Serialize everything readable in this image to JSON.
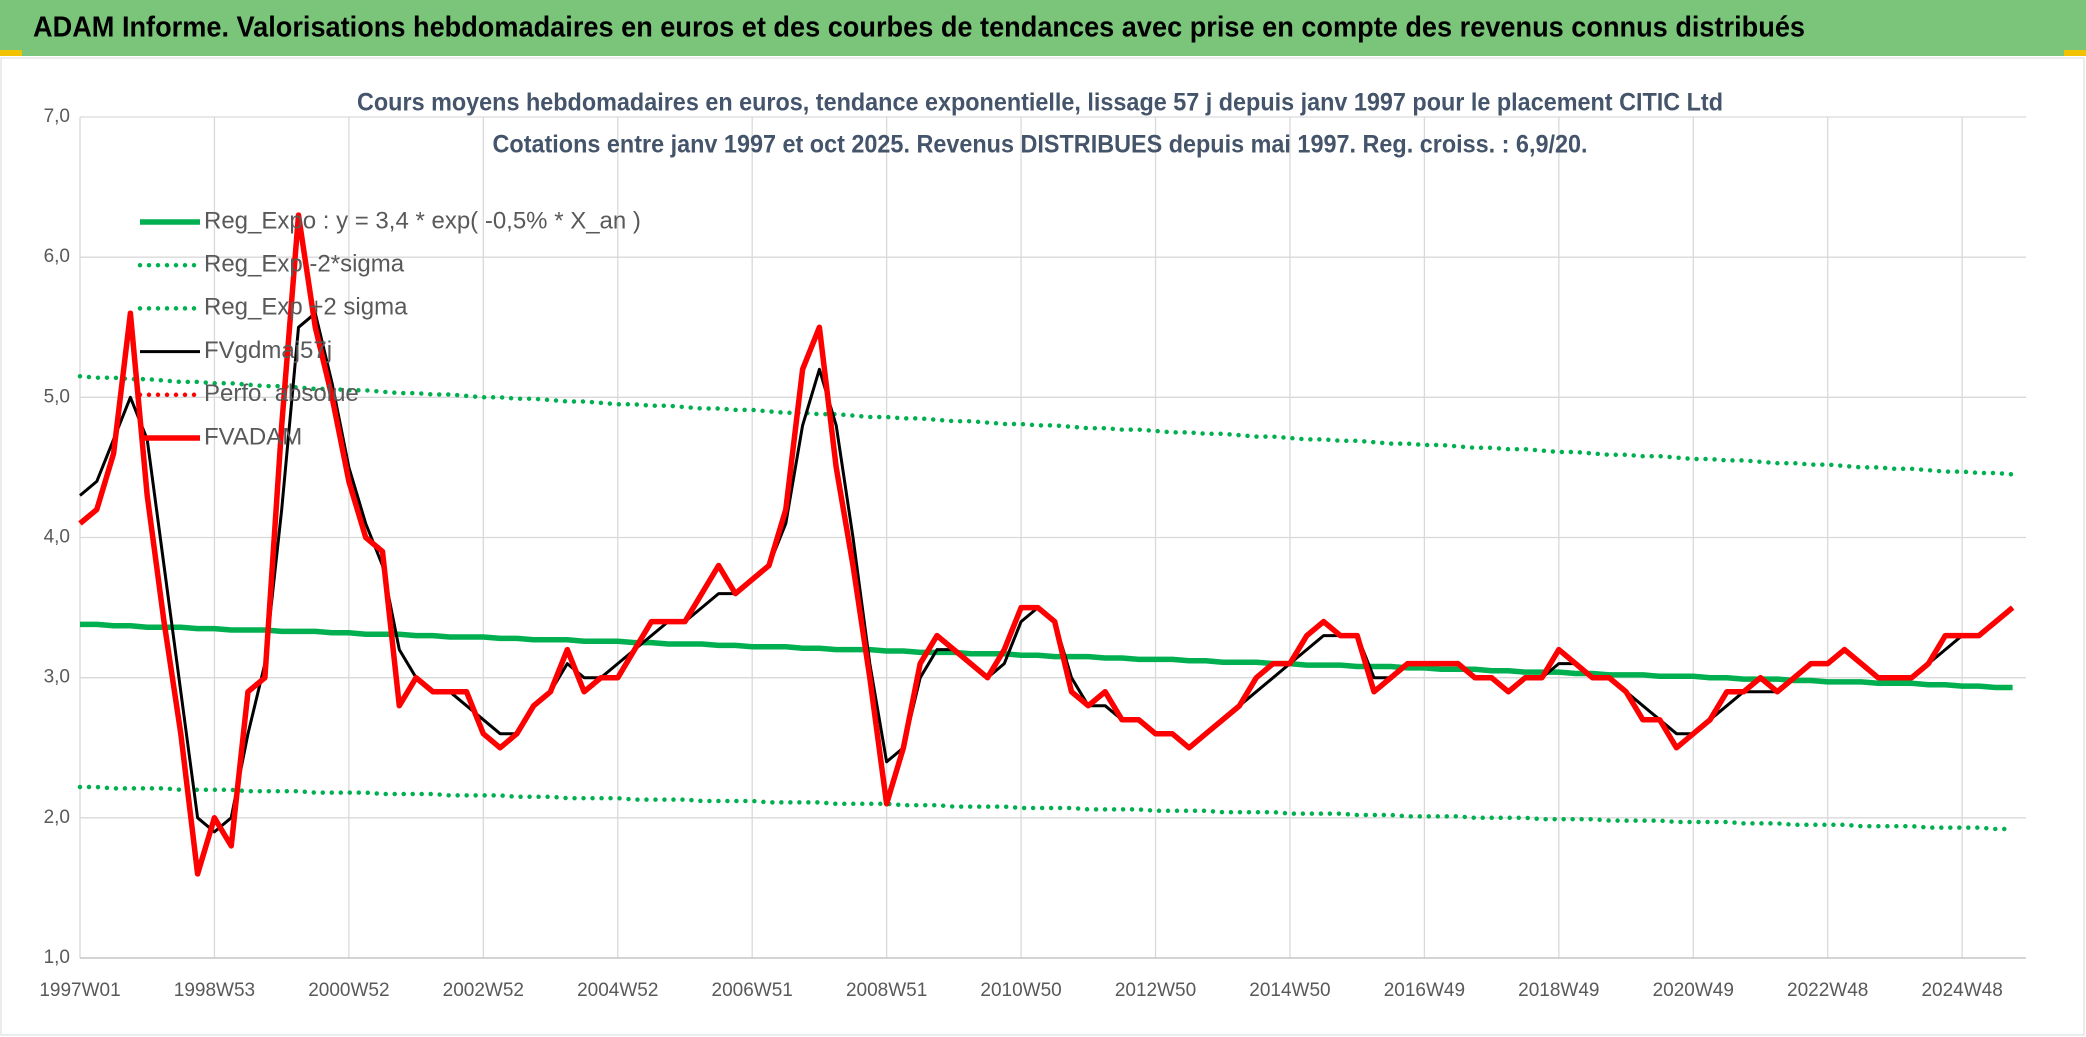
{
  "header": {
    "title": "ADAM Informe. Valorisations hebdomadaires en euros et des courbes de tendances avec prise en compte des revenus connus distribués"
  },
  "chart_data": {
    "type": "line",
    "title": "Cours moyens hebdomadaires en euros, tendance exponentielle, lissage 57 j depuis janv 1997 pour le placement CITIC Ltd",
    "subtitle": "Cotations entre janv 1997 et oct 2025. Revenus DISTRIBUES depuis mai 1997. Reg. croiss. : 6,9/20.",
    "categories": [
      "1997W01",
      null,
      null,
      null,
      null,
      null,
      null,
      null,
      "1998W53",
      null,
      null,
      null,
      null,
      null,
      null,
      null,
      "2000W52",
      null,
      null,
      null,
      null,
      null,
      null,
      null,
      "2002W52",
      null,
      null,
      null,
      null,
      null,
      null,
      null,
      "2004W52",
      null,
      null,
      null,
      null,
      null,
      null,
      null,
      "2006W51",
      null,
      null,
      null,
      null,
      null,
      null,
      null,
      "2008W51",
      null,
      null,
      null,
      null,
      null,
      null,
      null,
      "2010W50",
      null,
      null,
      null,
      null,
      null,
      null,
      null,
      "2012W50",
      null,
      null,
      null,
      null,
      null,
      null,
      null,
      "2014W50",
      null,
      null,
      null,
      null,
      null,
      null,
      null,
      "2016W49",
      null,
      null,
      null,
      null,
      null,
      null,
      null,
      "2018W49",
      null,
      null,
      null,
      null,
      null,
      null,
      null,
      "2020W49",
      null,
      null,
      null,
      null,
      null,
      null,
      null,
      "2022W48",
      null,
      null,
      null,
      null,
      null,
      null,
      null,
      "2024W48",
      null,
      null,
      null
    ],
    "ylim": [
      1,
      7
    ],
    "yticks": [
      {
        "value": 1,
        "label": "1,0"
      },
      {
        "value": 2,
        "label": "2,0"
      },
      {
        "value": 3,
        "label": "3,0"
      },
      {
        "value": 4,
        "label": "4,0"
      },
      {
        "value": 5,
        "label": "5,0"
      },
      {
        "value": 6,
        "label": "6,0"
      },
      {
        "value": 7,
        "label": "7,0"
      }
    ],
    "grid": true,
    "legend": "upper left",
    "series": [
      {
        "name": "Reg_Expo : y = 3,4 * exp( -0,5% *  X_an )",
        "color": "#00b050",
        "style": "solid",
        "values": [
          3.38,
          3.38,
          3.37,
          3.37,
          3.36,
          3.36,
          3.36,
          3.35,
          3.35,
          3.34,
          3.34,
          3.34,
          3.33,
          3.33,
          3.33,
          3.32,
          3.32,
          3.31,
          3.31,
          3.31,
          3.3,
          3.3,
          3.29,
          3.29,
          3.29,
          3.28,
          3.28,
          3.27,
          3.27,
          3.27,
          3.26,
          3.26,
          3.26,
          3.25,
          3.25,
          3.24,
          3.24,
          3.24,
          3.23,
          3.23,
          3.22,
          3.22,
          3.22,
          3.21,
          3.21,
          3.2,
          3.2,
          3.2,
          3.19,
          3.19,
          3.18,
          3.18,
          3.18,
          3.17,
          3.17,
          3.17,
          3.16,
          3.16,
          3.15,
          3.15,
          3.15,
          3.14,
          3.14,
          3.13,
          3.13,
          3.13,
          3.12,
          3.12,
          3.11,
          3.11,
          3.11,
          3.1,
          3.1,
          3.09,
          3.09,
          3.09,
          3.08,
          3.08,
          3.08,
          3.07,
          3.07,
          3.06,
          3.06,
          3.06,
          3.05,
          3.05,
          3.04,
          3.04,
          3.04,
          3.03,
          3.03,
          3.02,
          3.02,
          3.02,
          3.01,
          3.01,
          3.01,
          3.0,
          3.0,
          2.99,
          2.99,
          2.99,
          2.98,
          2.98,
          2.97,
          2.97,
          2.97,
          2.96,
          2.96,
          2.96,
          2.95,
          2.95,
          2.94,
          2.94,
          2.93,
          2.93
        ]
      },
      {
        "name": "Reg_Exp -2*sigma",
        "color": "#00b050",
        "style": "dotted",
        "values": [
          2.22,
          2.22,
          2.21,
          2.21,
          2.21,
          2.21,
          2.2,
          2.2,
          2.2,
          2.2,
          2.19,
          2.19,
          2.19,
          2.19,
          2.18,
          2.18,
          2.18,
          2.18,
          2.17,
          2.17,
          2.17,
          2.17,
          2.16,
          2.16,
          2.16,
          2.16,
          2.15,
          2.15,
          2.15,
          2.14,
          2.14,
          2.14,
          2.14,
          2.13,
          2.13,
          2.13,
          2.13,
          2.12,
          2.12,
          2.12,
          2.12,
          2.11,
          2.11,
          2.11,
          2.11,
          2.1,
          2.1,
          2.1,
          2.1,
          2.09,
          2.09,
          2.09,
          2.08,
          2.08,
          2.08,
          2.08,
          2.07,
          2.07,
          2.07,
          2.07,
          2.06,
          2.06,
          2.06,
          2.06,
          2.05,
          2.05,
          2.05,
          2.05,
          2.04,
          2.04,
          2.04,
          2.04,
          2.03,
          2.03,
          2.03,
          2.03,
          2.02,
          2.02,
          2.02,
          2.01,
          2.01,
          2.01,
          2.01,
          2.0,
          2.0,
          2.0,
          2.0,
          1.99,
          1.99,
          1.99,
          1.99,
          1.98,
          1.98,
          1.98,
          1.98,
          1.97,
          1.97,
          1.97,
          1.97,
          1.96,
          1.96,
          1.96,
          1.95,
          1.95,
          1.95,
          1.95,
          1.94,
          1.94,
          1.94,
          1.94,
          1.93,
          1.93,
          1.93,
          1.93,
          1.92,
          1.92
        ]
      },
      {
        "name": "Reg_Exp +2 sigma",
        "color": "#00b050",
        "style": "dotted",
        "values": [
          5.15,
          5.14,
          5.14,
          5.13,
          5.13,
          5.12,
          5.11,
          5.11,
          5.1,
          5.1,
          5.09,
          5.08,
          5.08,
          5.07,
          5.06,
          5.06,
          5.05,
          5.05,
          5.04,
          5.03,
          5.03,
          5.02,
          5.02,
          5.01,
          5.0,
          5.0,
          4.99,
          4.99,
          4.98,
          4.97,
          4.97,
          4.96,
          4.95,
          4.95,
          4.94,
          4.94,
          4.93,
          4.92,
          4.92,
          4.91,
          4.91,
          4.9,
          4.89,
          4.89,
          4.88,
          4.88,
          4.87,
          4.86,
          4.86,
          4.85,
          4.85,
          4.84,
          4.83,
          4.83,
          4.82,
          4.81,
          4.81,
          4.8,
          4.8,
          4.79,
          4.78,
          4.78,
          4.77,
          4.77,
          4.76,
          4.75,
          4.75,
          4.74,
          4.74,
          4.73,
          4.72,
          4.72,
          4.71,
          4.7,
          4.7,
          4.69,
          4.69,
          4.68,
          4.67,
          4.67,
          4.66,
          4.66,
          4.65,
          4.64,
          4.64,
          4.63,
          4.63,
          4.62,
          4.61,
          4.61,
          4.6,
          4.59,
          4.59,
          4.58,
          4.58,
          4.57,
          4.56,
          4.56,
          4.55,
          4.55,
          4.54,
          4.53,
          4.53,
          4.52,
          4.52,
          4.51,
          4.5,
          4.5,
          4.49,
          4.49,
          4.48,
          4.47,
          4.47,
          4.46,
          4.46,
          4.45
        ]
      },
      {
        "name": "FVgdmaj57j",
        "color": "#000000",
        "style": "solid",
        "values": [
          4.3,
          4.4,
          4.7,
          5.0,
          4.7,
          3.8,
          2.9,
          2.0,
          1.9,
          2.0,
          2.6,
          3.1,
          4.2,
          5.5,
          5.6,
          5.1,
          4.5,
          4.1,
          3.8,
          3.2,
          3.0,
          2.9,
          2.9,
          2.8,
          2.7,
          2.6,
          2.6,
          2.8,
          2.9,
          3.1,
          3.0,
          3.0,
          3.1,
          3.2,
          3.3,
          3.4,
          3.4,
          3.5,
          3.6,
          3.6,
          3.7,
          3.8,
          4.1,
          4.8,
          5.2,
          4.8,
          4.0,
          3.1,
          2.4,
          2.5,
          3.0,
          3.2,
          3.2,
          3.1,
          3.0,
          3.1,
          3.4,
          3.5,
          3.4,
          3.0,
          2.8,
          2.8,
          2.7,
          2.7,
          2.6,
          2.6,
          2.5,
          2.6,
          2.7,
          2.8,
          2.9,
          3.0,
          3.1,
          3.2,
          3.3,
          3.3,
          3.3,
          3.0,
          3.0,
          3.1,
          3.1,
          3.1,
          3.1,
          3.0,
          3.0,
          2.9,
          3.0,
          3.0,
          3.1,
          3.1,
          3.0,
          3.0,
          2.9,
          2.8,
          2.7,
          2.6,
          2.6,
          2.7,
          2.8,
          2.9,
          2.9,
          2.9,
          3.0,
          3.1,
          3.1,
          3.2,
          3.1,
          3.0,
          3.0,
          3.0,
          3.1,
          3.2,
          3.3,
          3.3,
          3.4,
          3.5
        ]
      },
      {
        "name": "Perfo. absolue",
        "color": "#ff0000",
        "style": "dotted",
        "values": [
          null,
          null,
          null,
          null,
          null,
          null,
          null,
          null,
          null,
          null,
          null,
          null,
          null,
          null,
          null,
          null,
          null,
          null,
          null,
          null,
          null,
          null,
          null,
          null,
          null,
          null,
          null,
          null,
          null,
          null,
          null,
          null,
          null,
          null,
          null,
          null,
          null,
          null,
          null,
          null,
          null,
          null,
          null,
          null,
          null,
          null,
          null,
          null,
          null,
          null,
          null,
          null,
          null,
          null,
          null,
          null,
          null,
          null,
          null,
          null,
          null,
          null,
          null,
          null,
          null,
          null,
          null,
          null,
          null,
          null,
          null,
          null,
          null,
          null,
          null,
          null,
          null,
          null,
          null,
          null,
          null,
          null,
          null,
          null,
          null,
          null,
          null,
          null,
          null,
          null,
          null,
          null,
          null,
          null,
          null,
          null,
          null,
          null,
          null,
          null,
          null,
          null,
          null,
          null,
          null,
          null,
          null,
          null,
          null,
          null,
          null,
          null,
          null,
          null,
          null,
          null
        ]
      },
      {
        "name": "FVADAM",
        "color": "#ff0000",
        "style": "solid",
        "values": [
          4.1,
          4.2,
          4.6,
          5.6,
          4.3,
          3.4,
          2.6,
          1.6,
          2.0,
          1.8,
          2.9,
          3.0,
          4.8,
          6.3,
          5.5,
          5.0,
          4.4,
          4.0,
          3.9,
          2.8,
          3.0,
          2.9,
          2.9,
          2.9,
          2.6,
          2.5,
          2.6,
          2.8,
          2.9,
          3.2,
          2.9,
          3.0,
          3.0,
          3.2,
          3.4,
          3.4,
          3.4,
          3.6,
          3.8,
          3.6,
          3.7,
          3.8,
          4.2,
          5.2,
          5.5,
          4.5,
          3.8,
          3.0,
          2.1,
          2.5,
          3.1,
          3.3,
          3.2,
          3.1,
          3.0,
          3.2,
          3.5,
          3.5,
          3.4,
          2.9,
          2.8,
          2.9,
          2.7,
          2.7,
          2.6,
          2.6,
          2.5,
          2.6,
          2.7,
          2.8,
          3.0,
          3.1,
          3.1,
          3.3,
          3.4,
          3.3,
          3.3,
          2.9,
          3.0,
          3.1,
          3.1,
          3.1,
          3.1,
          3.0,
          3.0,
          2.9,
          3.0,
          3.0,
          3.2,
          3.1,
          3.0,
          3.0,
          2.9,
          2.7,
          2.7,
          2.5,
          2.6,
          2.7,
          2.9,
          2.9,
          3.0,
          2.9,
          3.0,
          3.1,
          3.1,
          3.2,
          3.1,
          3.0,
          3.0,
          3.0,
          3.1,
          3.3,
          3.3,
          3.3,
          3.4,
          3.5
        ]
      }
    ]
  }
}
